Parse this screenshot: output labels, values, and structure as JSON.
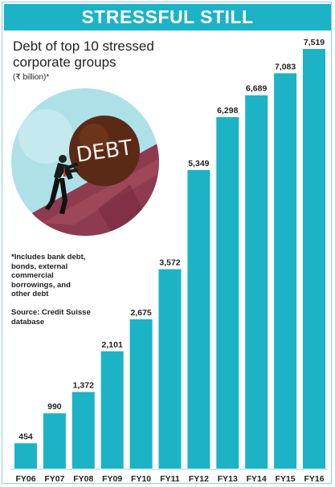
{
  "banner": "STRESSFUL STILL",
  "title": "Debt of top 10 stressed corporate groups",
  "unit": "(₹ billion)*",
  "note_lines": [
    "*Includes bank debt,",
    "bonds, external",
    "commercial",
    "borrowings, and",
    "other debt"
  ],
  "source_lines": [
    "Source: Credit Suisse",
    "database"
  ],
  "illustration_text": "DEBT",
  "colors": {
    "bar": "#1cb3c6",
    "banner": "#1cb3c6",
    "circle": "#aee0e8",
    "slope": "#8e3a4f",
    "ball": "#5a2a16"
  },
  "chart_data": {
    "type": "bar",
    "categories": [
      "FY06",
      "FY07",
      "FY08",
      "FY09",
      "FY10",
      "FY11",
      "FY12",
      "FY13",
      "FY14",
      "FY15",
      "FY16"
    ],
    "values": [
      454,
      990,
      1372,
      2101,
      2675,
      3572,
      5349,
      6298,
      6689,
      7083,
      7519
    ],
    "value_labels": [
      "454",
      "990",
      "1,372",
      "2,101",
      "2,675",
      "3,572",
      "5,349",
      "6,298",
      "6,689",
      "7,083",
      "7,519"
    ],
    "title": "Debt of top 10 stressed corporate groups",
    "ylabel": "(₹ billion)*",
    "xlabel": "",
    "ylim": [
      0,
      7519
    ],
    "grid": false,
    "legend": "none"
  }
}
